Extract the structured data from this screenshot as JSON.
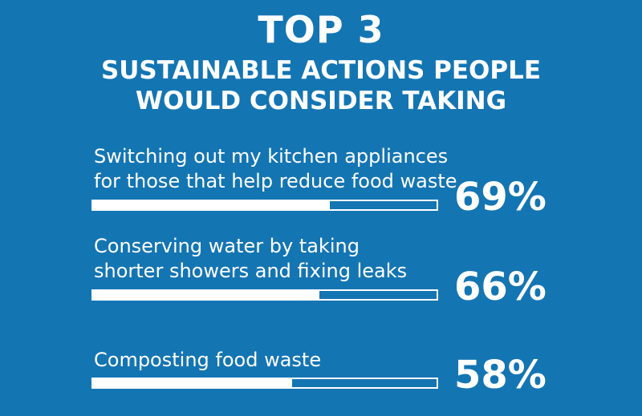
{
  "header": {
    "title": "TOP 3",
    "subtitle_line1": "SUSTAINABLE ACTIONS PEOPLE",
    "subtitle_line2": "WOULD CONSIDER TAKING"
  },
  "colors": {
    "background": "#1475b3",
    "foreground": "#ffffff"
  },
  "chart_data": {
    "type": "bar",
    "orientation": "horizontal",
    "title": "TOP 3 SUSTAINABLE ACTIONS PEOPLE WOULD CONSIDER TAKING",
    "categories": [
      "Switching out my kitchen appliances for those that help reduce food waste",
      "Conserving water by taking shorter showers and fixing leaks",
      "Composting food waste"
    ],
    "category_lines": [
      [
        "Switching out my kitchen appliances",
        "for those that help reduce food waste"
      ],
      [
        "Conserving water by taking",
        "shorter showers and fixing leaks"
      ],
      [
        "Composting food waste"
      ]
    ],
    "values": [
      69,
      66,
      58
    ],
    "value_labels": [
      "69%",
      "66%",
      "58%"
    ],
    "unit": "%",
    "xlim": [
      0,
      100
    ],
    "grid": false,
    "legend": "none"
  }
}
